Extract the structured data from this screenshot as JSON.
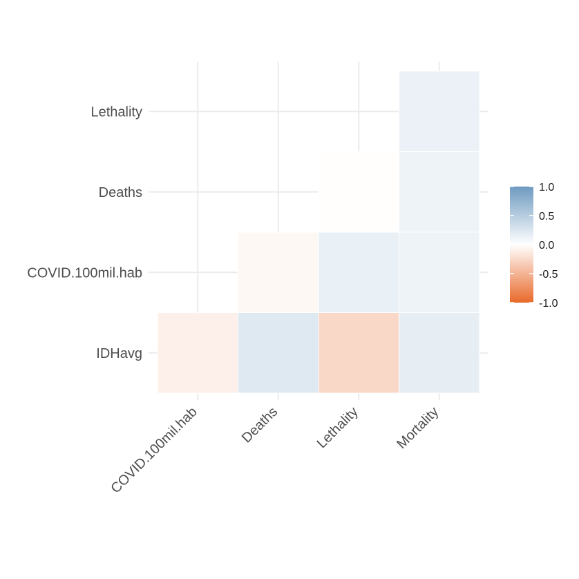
{
  "chart_data": {
    "type": "heatmap",
    "title": "",
    "xlabel": "",
    "ylabel": "",
    "x_categories": [
      "COVID.100mil.hab",
      "Deaths",
      "Lethality",
      "Mortality"
    ],
    "y_categories": [
      "IDHavg",
      "COVID.100mil.hab",
      "Deaths",
      "Lethality"
    ],
    "cells": [
      {
        "x": "COVID.100mil.hab",
        "y": "IDHavg",
        "value": -0.1
      },
      {
        "x": "Deaths",
        "y": "IDHavg",
        "value": 0.22
      },
      {
        "x": "Lethality",
        "y": "IDHavg",
        "value": -0.26
      },
      {
        "x": "Mortality",
        "y": "IDHavg",
        "value": 0.17
      },
      {
        "x": "Deaths",
        "y": "COVID.100mil.hab",
        "value": -0.05
      },
      {
        "x": "Lethality",
        "y": "COVID.100mil.hab",
        "value": 0.15
      },
      {
        "x": "Mortality",
        "y": "COVID.100mil.hab",
        "value": 0.12
      },
      {
        "x": "Lethality",
        "y": "Deaths",
        "value": -0.01
      },
      {
        "x": "Mortality",
        "y": "Deaths",
        "value": 0.12
      },
      {
        "x": "Mortality",
        "y": "Lethality",
        "value": 0.14
      }
    ],
    "color_scale": {
      "low_color": "#E8692A",
      "mid_color": "#FFFFFF",
      "high_color": "#6E9AC0",
      "limits": [
        -1.0,
        1.0
      ]
    },
    "legend": {
      "placement": "right",
      "ticks": [
        "1.0",
        "0.5",
        "0.0",
        "-0.5",
        "-1.0"
      ],
      "tick_values": [
        1.0,
        0.5,
        0.0,
        -0.5,
        -1.0
      ]
    },
    "grid": true
  }
}
